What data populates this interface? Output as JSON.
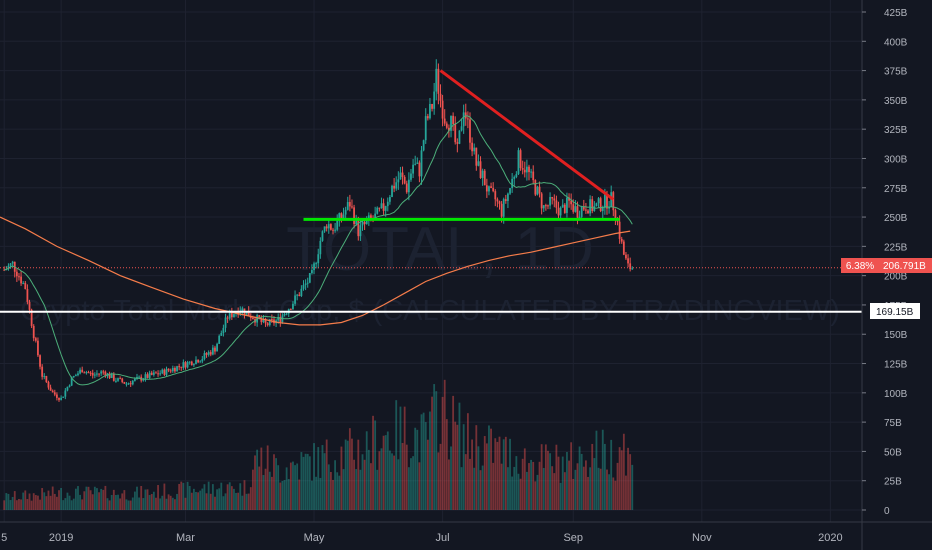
{
  "chart_data": {
    "type": "candlestick",
    "watermark": {
      "symbol": "TOTAL, 1D",
      "name": "Crypto Total Market Cap, $ (CALCULATED BY TRADINGVIEW)"
    },
    "x_axis": {
      "ticks": [
        {
          "label": "5",
          "day": 0
        },
        {
          "label": "2019",
          "day": 27
        },
        {
          "label": "Mar",
          "day": 86
        },
        {
          "label": "May",
          "day": 147
        },
        {
          "label": "Jul",
          "day": 208
        },
        {
          "label": "Sep",
          "day": 270
        },
        {
          "label": "Nov",
          "day": 331
        },
        {
          "label": "2020",
          "day": 392
        }
      ],
      "range_days": [
        -2,
        407
      ]
    },
    "y_axis": {
      "unit": "B",
      "range": [
        0,
        425
      ],
      "ticks": [
        {
          "label": "425B",
          "value": 425
        },
        {
          "label": "400B",
          "value": 400
        },
        {
          "label": "375B",
          "value": 375
        },
        {
          "label": "350B",
          "value": 350
        },
        {
          "label": "325B",
          "value": 325
        },
        {
          "label": "300B",
          "value": 300
        },
        {
          "label": "275B",
          "value": 275
        },
        {
          "label": "250B",
          "value": 250
        },
        {
          "label": "225B",
          "value": 225
        },
        {
          "label": "200B",
          "value": 200
        },
        {
          "label": "175B",
          "value": 175
        },
        {
          "label": "150B",
          "value": 150
        },
        {
          "label": "125B",
          "value": 125
        },
        {
          "label": "100B",
          "value": 100
        },
        {
          "label": "75B",
          "value": 75
        },
        {
          "label": "50B",
          "value": 50
        },
        {
          "label": "25B",
          "value": 25
        },
        {
          "label": "0",
          "value": 0
        }
      ]
    },
    "last_price": {
      "label": "206.791B",
      "value": 206.791,
      "change_label": "6.38%"
    },
    "horizontal_line": {
      "label": "169.15B",
      "value": 169.15,
      "color": "#ffffff"
    },
    "support_line": {
      "value": 248,
      "from_day": 142,
      "to_day": 292,
      "color": "#00e600"
    },
    "trend_line": {
      "points": [
        [
          207,
          375
        ],
        [
          289,
          265
        ]
      ],
      "color": "#e02020"
    },
    "colors": {
      "up": "#26a69a",
      "down": "#ef5350",
      "ma_long": "#f57c4a",
      "ma_short": "#4caf7a"
    },
    "price_path": {
      "days": [
        0,
        4,
        10,
        14,
        18,
        23,
        27,
        32,
        37,
        42,
        47,
        52,
        58,
        64,
        70,
        76,
        82,
        88,
        94,
        100,
        106,
        112,
        118,
        124,
        130,
        136,
        140,
        146,
        150,
        153,
        156,
        160,
        164,
        168,
        172,
        176,
        180,
        184,
        188,
        191,
        194,
        197,
        200,
        203,
        205,
        207,
        209,
        212,
        215,
        218,
        221,
        224,
        227,
        230,
        233,
        236,
        240,
        244,
        248,
        252,
        256,
        260,
        264,
        268,
        272,
        276,
        280,
        284,
        288,
        290,
        292,
        294,
        296,
        298
      ],
      "values": [
        205,
        210,
        190,
        150,
        115,
        100,
        95,
        112,
        120,
        115,
        118,
        112,
        108,
        112,
        115,
        118,
        122,
        126,
        130,
        138,
        165,
        172,
        165,
        158,
        162,
        175,
        185,
        200,
        230,
        245,
        240,
        250,
        262,
        238,
        245,
        250,
        258,
        275,
        285,
        275,
        295,
        290,
        330,
        345,
        370,
        350,
        335,
        330,
        305,
        345,
        320,
        295,
        285,
        270,
        265,
        255,
        275,
        300,
        290,
        275,
        258,
        262,
        255,
        262,
        255,
        260,
        258,
        262,
        265,
        255,
        235,
        218,
        207,
        207
      ]
    },
    "ma_long_path": {
      "days": [
        -2,
        10,
        25,
        40,
        55,
        70,
        85,
        100,
        115,
        130,
        140,
        150,
        160,
        170,
        180,
        190,
        200,
        210,
        220,
        230,
        240,
        250,
        260,
        270,
        280,
        290,
        297
      ],
      "values": [
        250,
        240,
        225,
        213,
        200,
        190,
        180,
        172,
        166,
        160,
        158,
        158,
        160,
        166,
        175,
        185,
        195,
        202,
        208,
        213,
        217,
        220,
        224,
        228,
        232,
        236,
        238
      ]
    },
    "volume": {
      "days": [
        0,
        30,
        60,
        95,
        115,
        120,
        130,
        150,
        160,
        170,
        180,
        190,
        200,
        207,
        210,
        220,
        230,
        250,
        270,
        280,
        290,
        293,
        297
      ],
      "values": [
        10,
        14,
        13,
        17,
        18,
        42,
        33,
        40,
        45,
        48,
        60,
        62,
        56,
        85,
        72,
        55,
        50,
        38,
        38,
        48,
        42,
        58,
        38
      ]
    }
  }
}
